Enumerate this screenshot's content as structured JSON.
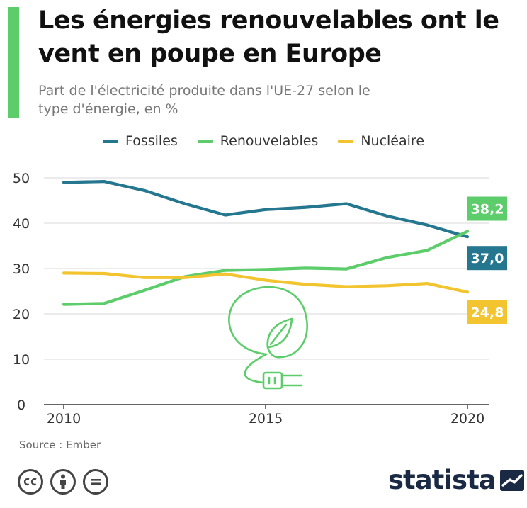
{
  "header": {
    "title": "Les énergies renouvelables ont le vent en poupe en Europe",
    "subtitle": "Part de l'électricité produite dans l'UE-27 selon le type d'énergie, en %"
  },
  "footer": {
    "source": "Source : Ember",
    "brand": "statista",
    "cc_icons": [
      "cc-icon",
      "by-icon",
      "nd-icon"
    ]
  },
  "colors": {
    "accent": "#5ccd6a",
    "fossiles": "#24778f",
    "renouvelables": "#5ccd6a",
    "nucleaire": "#f2c530",
    "brand": "#1a2a44"
  },
  "chart_data": {
    "type": "line",
    "x": [
      2010,
      2011,
      2012,
      2013,
      2014,
      2015,
      2016,
      2017,
      2018,
      2019,
      2020
    ],
    "xticks": [
      "2010",
      "2015",
      "2020"
    ],
    "yticks": [
      "0",
      "10",
      "20",
      "30",
      "40",
      "50"
    ],
    "ylim": [
      0,
      50
    ],
    "xlim": [
      2010,
      2020
    ],
    "grid": true,
    "legend_position": "top-center",
    "series": [
      {
        "name": "Fossiles",
        "color": "#24778f",
        "values": [
          49.0,
          49.2,
          47.2,
          44.3,
          41.8,
          43.0,
          43.5,
          44.3,
          41.6,
          39.6,
          37.0
        ],
        "end_label": "37,0"
      },
      {
        "name": "Renouvelables",
        "color": "#5ccd6a",
        "values": [
          22.1,
          22.3,
          25.2,
          28.2,
          29.6,
          29.8,
          30.1,
          29.9,
          32.4,
          34.0,
          38.2
        ],
        "end_label": "38,2"
      },
      {
        "name": "Nucléaire",
        "color": "#f2c530",
        "values": [
          29.0,
          28.9,
          28.0,
          28.0,
          28.8,
          27.4,
          26.5,
          26.0,
          26.2,
          26.7,
          24.8
        ],
        "end_label": "24,8"
      }
    ]
  }
}
